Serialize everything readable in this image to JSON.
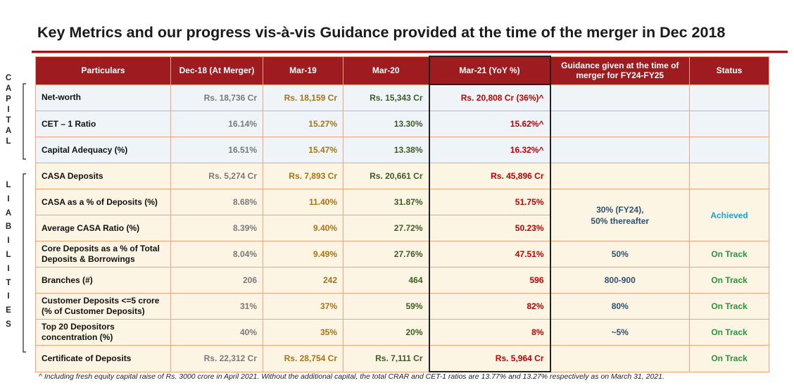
{
  "title": "Key Metrics and our progress vis-à-vis Guidance provided at the time of the merger in Dec 2018",
  "side_labels": {
    "capital": [
      "C",
      "A",
      "P",
      "I",
      "T",
      "A",
      "L"
    ],
    "liabilities": [
      "L",
      "I",
      "A",
      "B",
      "I",
      "L",
      "I",
      "T",
      "I",
      "E",
      "S"
    ]
  },
  "headers": {
    "particulars": "Particulars",
    "dec18": "Dec-18 (At Merger)",
    "mar19": "Mar-19",
    "mar20": "Mar-20",
    "mar21": "Mar-21 (YoY %)",
    "guidance": "Guidance given at the time of merger for FY24-FY25",
    "status": "Status"
  },
  "rows": {
    "net_worth": {
      "label": "Net-worth",
      "dec18": "Rs. 18,736 Cr",
      "mar19": "Rs. 18,159 Cr",
      "mar20": "Rs. 15,343 Cr",
      "mar21": "Rs. 20,808 Cr (36%)^"
    },
    "cet1": {
      "label": "CET – 1 Ratio",
      "dec18": "16.14%",
      "mar19": "15.27%",
      "mar20": "13.30%",
      "mar21": "15.62%^"
    },
    "car": {
      "label": "Capital Adequacy (%)",
      "dec18": "16.51%",
      "mar19": "15.47%",
      "mar20": "13.38%",
      "mar21": "16.32%^"
    },
    "casa_dep": {
      "label": "CASA Deposits",
      "dec18": "Rs. 5,274 Cr",
      "mar19": "Rs. 7,893 Cr",
      "mar20": "Rs. 20,661 Cr",
      "mar21": "Rs. 45,896 Cr"
    },
    "casa_pct": {
      "label": "CASA as a % of Deposits (%)",
      "dec18": "8.68%",
      "mar19": "11.40%",
      "mar20": "31.87%",
      "mar21": "51.75%"
    },
    "avg_casa": {
      "label": "Average CASA Ratio (%)",
      "dec18": "8.39%",
      "mar19": "9.40%",
      "mar20": "27.72%",
      "mar21": "50.23%"
    },
    "casa_guidance": {
      "line1": "30% (FY24),",
      "line2": "50% thereafter"
    },
    "casa_status": "Achieved",
    "core_dep": {
      "label_line1": "Core Deposits as a % of Total",
      "label_line2": "Deposits & Borrowings",
      "dec18": "8.04%",
      "mar19": "9.49%",
      "mar20": "27.76%",
      "mar21": "47.51%",
      "guidance": "50%",
      "status": "On Track"
    },
    "branches": {
      "label": "Branches (#)",
      "dec18": "206",
      "mar19": "242",
      "mar20": "464",
      "mar21": "596",
      "guidance": "800-900",
      "status": "On Track"
    },
    "cust_dep": {
      "label_line1": "Customer Deposits <=5 crore",
      "label_line2": "(% of Customer Deposits)",
      "dec18": "31%",
      "mar19": "37%",
      "mar20": "59%",
      "mar21": "82%",
      "guidance": "80%",
      "status": "On Track"
    },
    "top20": {
      "label_line1": "Top 20 Depositors",
      "label_line2": "concentration (%)",
      "dec18": "40%",
      "mar19": "35%",
      "mar20": "20%",
      "mar21": "8%",
      "guidance": "~5%",
      "status": "On Track"
    },
    "cod": {
      "label": "Certificate of Deposits",
      "dec18": "Rs. 22,312 Cr",
      "mar19": "Rs. 28,754 Cr",
      "mar20": "Rs. 7,111 Cr",
      "mar21": "Rs. 5,964 Cr",
      "status": "On Track"
    }
  },
  "footnote": "^ Including  fresh equity capital raise of Rs. 3000 crore in April 2021. Without the additional capital, the total CRAR and CET-1 ratios are 13.77% and 13.27% respectively as on March 31, 2021.",
  "colors": {
    "header_bg": "#9e1b20",
    "grid": "#f4a37c",
    "capital_row_bg": "#eef4f8",
    "liabilities_row_bg": "#fdf5e3",
    "dec18": "#7a7a7a",
    "mar19": "#a87412",
    "mar20": "#3f5b24",
    "mar21": "#c00000",
    "guidance": "#2f4f70",
    "achieved": "#1aa3d6",
    "on_track": "#27963a"
  }
}
